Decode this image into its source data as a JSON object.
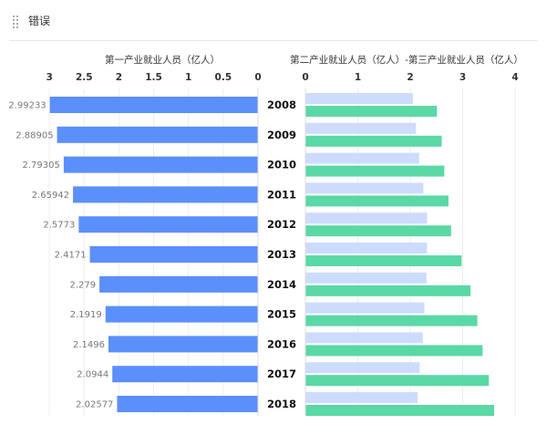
{
  "header": {
    "title": "错误"
  },
  "chart_data": {
    "type": "bar",
    "categories": [
      "2008",
      "2009",
      "2010",
      "2011",
      "2012",
      "2013",
      "2014",
      "2015",
      "2016",
      "2017",
      "2018"
    ],
    "left": {
      "title": "第一产业就业人员（亿人）",
      "ticks": [
        "3",
        "2.5",
        "2",
        "1.5",
        "1",
        "0.5",
        "0"
      ],
      "xlim": [
        0,
        3
      ],
      "values": [
        2.99233,
        2.88905,
        2.79305,
        2.65942,
        2.5773,
        2.4171,
        2.279,
        2.1919,
        2.1496,
        2.0944,
        2.02577
      ],
      "labels": [
        "2.99233",
        "2.88905",
        "2.79305",
        "2.65942",
        "2.5773",
        "2.4171",
        "2.279",
        "2.1919",
        "2.1496",
        "2.0944",
        "2.02577"
      ],
      "color": "#5b8ff9"
    },
    "right": {
      "title": "第二产业就业人员（亿人）-第三产业就业人员（亿人）",
      "ticks": [
        "0",
        "1",
        "2",
        "3",
        "4"
      ],
      "xlim": [
        0,
        4
      ],
      "series": [
        {
          "values": [
            2.05,
            2.11,
            2.17,
            2.25,
            2.32,
            2.32,
            2.31,
            2.27,
            2.24,
            2.18,
            2.14
          ],
          "color": "#cddcfd"
        },
        {
          "values": [
            2.51,
            2.6,
            2.65,
            2.73,
            2.78,
            2.98,
            3.15,
            3.28,
            3.38,
            3.5,
            3.6
          ],
          "color": "#5ad8a6"
        }
      ]
    },
    "grid": true
  }
}
